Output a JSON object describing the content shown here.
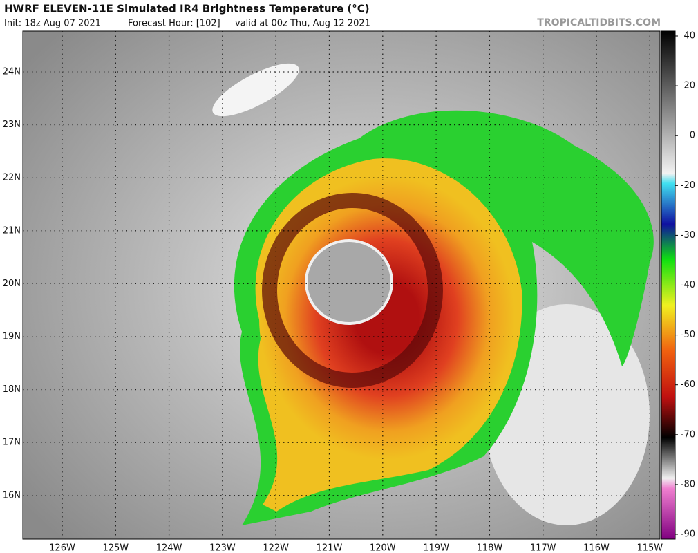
{
  "header": {
    "title": "HWRF ELEVEN-11E Simulated IR4 Brightness Temperature (°C)",
    "init": "Init: 18z Aug 07 2021",
    "forecast_hour": "Forecast Hour: [102]",
    "valid": "valid at 00z Thu, Aug 12 2021",
    "watermark": "TROPICALTIDBITS.COM"
  },
  "map": {
    "lat_labels": [
      "24N",
      "23N",
      "22N",
      "21N",
      "20N",
      "19N",
      "18N",
      "17N",
      "16N"
    ],
    "lon_labels": [
      "126W",
      "125W",
      "124W",
      "123W",
      "122W",
      "121W",
      "120W",
      "119W",
      "118W",
      "117W",
      "116W",
      "115W"
    ]
  },
  "colorbar": {
    "labels": [
      40,
      20,
      0,
      -20,
      -30,
      -40,
      -50,
      -60,
      -70,
      -80,
      -90
    ]
  }
}
